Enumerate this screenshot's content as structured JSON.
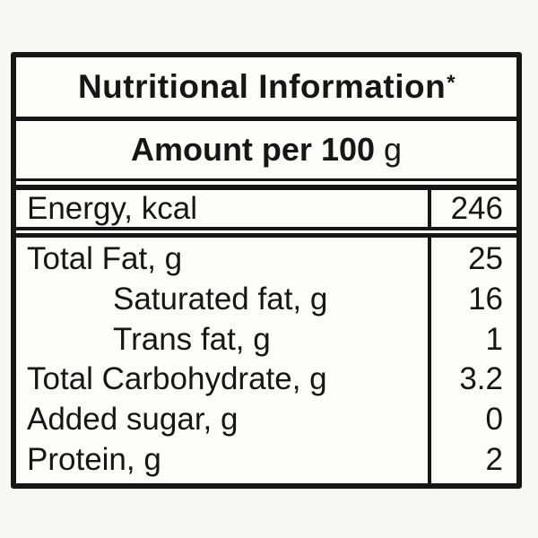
{
  "label": {
    "title": "Nutritional Information",
    "title_superscript": "*",
    "subtitle_bold": "Amount per 100",
    "subtitle_unit": "g",
    "energy_row": {
      "label": "Energy, kcal",
      "value": "246"
    },
    "rows": [
      {
        "label": "Total Fat, g",
        "value": "25",
        "indent": false
      },
      {
        "label": "Saturated fat, g",
        "value": "16",
        "indent": true
      },
      {
        "label": "Trans fat, g",
        "value": "1",
        "indent": true
      },
      {
        "label": "Total Carbohydrate, g",
        "value": "3.2",
        "indent": false
      },
      {
        "label": "Added sugar, g",
        "value": "0",
        "indent": false
      },
      {
        "label": "Protein, g",
        "value": "2",
        "indent": false
      }
    ],
    "colors": {
      "border": "#161616",
      "text": "#161616",
      "page_background": "#f7f8f6",
      "label_background": "#fcfcfb"
    }
  }
}
